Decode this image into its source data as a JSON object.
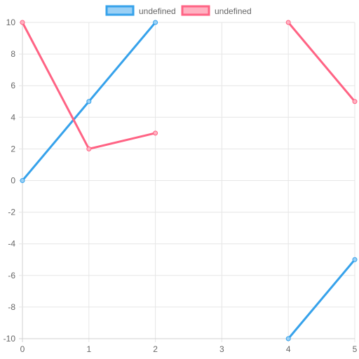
{
  "chart_data": {
    "type": "line",
    "title": "",
    "xlabel": "",
    "ylabel": "",
    "xlim": [
      0,
      5
    ],
    "ylim": [
      -10,
      10
    ],
    "x_ticks": [
      0,
      1,
      2,
      3,
      4,
      5
    ],
    "y_ticks": [
      10,
      8,
      6,
      4,
      2,
      0,
      -2,
      -4,
      -6,
      -8,
      -10
    ],
    "grid": true,
    "legend_position": "top",
    "series": [
      {
        "name": "undefined",
        "color": "#36a2eb",
        "fill": "#9ad0f5",
        "points": [
          {
            "x": 0,
            "y": 0
          },
          {
            "x": 1,
            "y": 5
          },
          {
            "x": 2,
            "y": 10
          },
          {
            "x": 3,
            "y": null
          },
          {
            "x": 4,
            "y": -10
          },
          {
            "x": 5,
            "y": -5
          }
        ]
      },
      {
        "name": "undefined",
        "color": "#ff6384",
        "fill": "#ffb1c1",
        "points": [
          {
            "x": 0,
            "y": 10
          },
          {
            "x": 1,
            "y": 2
          },
          {
            "x": 2,
            "y": 3
          },
          {
            "x": 3,
            "y": null
          },
          {
            "x": 4,
            "y": 10
          },
          {
            "x": 5,
            "y": 5
          }
        ]
      }
    ]
  }
}
